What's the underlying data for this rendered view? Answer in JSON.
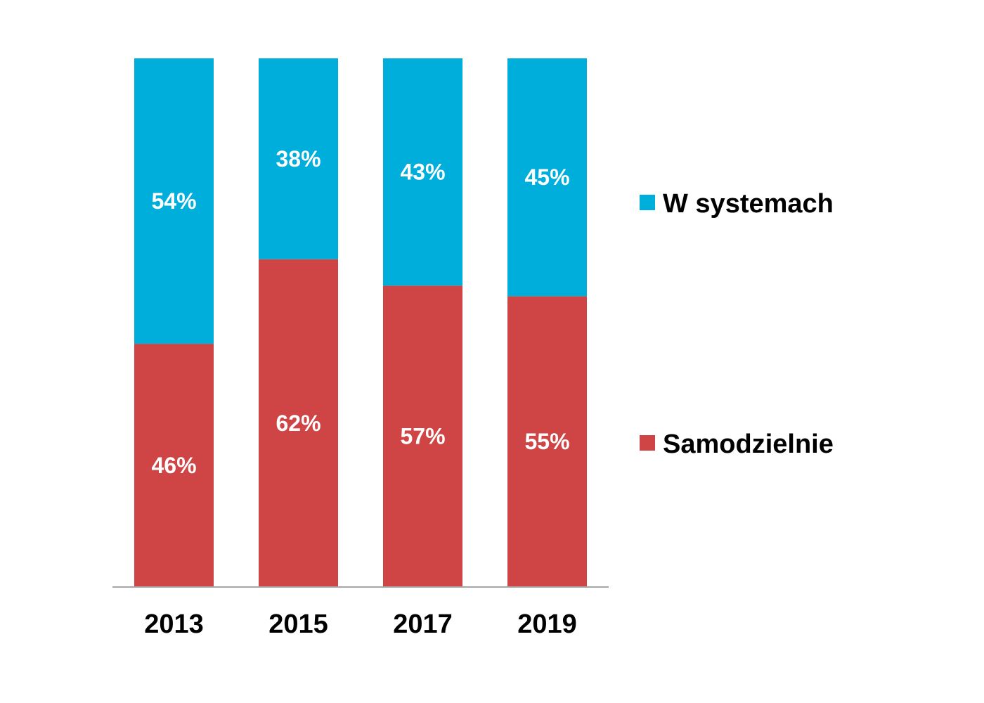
{
  "chart_data": {
    "type": "bar",
    "stacked": true,
    "categories": [
      "2013",
      "2015",
      "2017",
      "2019"
    ],
    "series": [
      {
        "name": "Samodzielnie",
        "values": [
          46,
          62,
          57,
          55
        ],
        "labels": [
          "46%",
          "62%",
          "57%",
          "55%"
        ],
        "color": "#cf4444"
      },
      {
        "name": "W systemach",
        "values": [
          54,
          38,
          43,
          45
        ],
        "labels": [
          "54%",
          "38%",
          "43%",
          "45%"
        ],
        "color": "#00aedb"
      }
    ],
    "ylim": [
      0,
      100
    ],
    "grid": false,
    "legend": "right"
  }
}
